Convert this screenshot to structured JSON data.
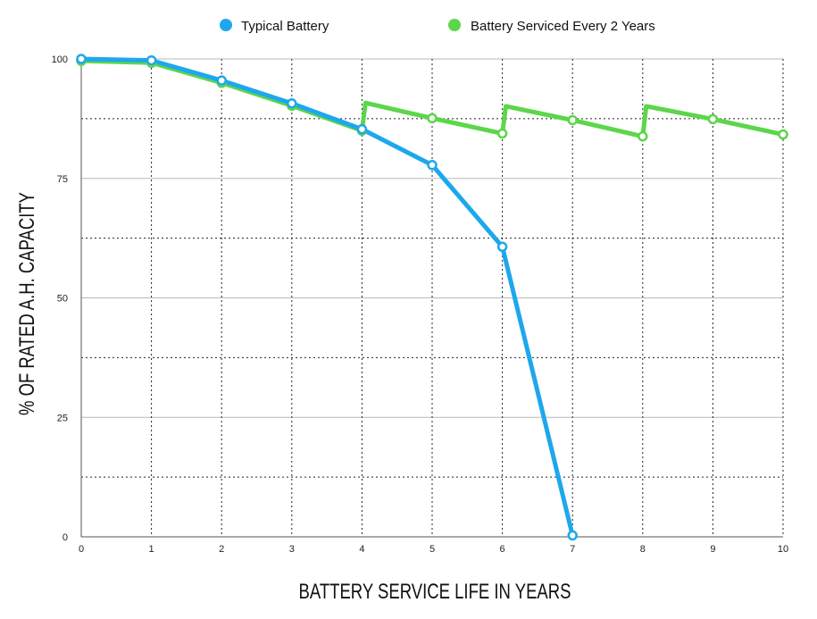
{
  "chart_data": {
    "type": "line",
    "xlabel": "BATTERY SERVICE LIFE IN YEARS",
    "ylabel": "% OF RATED A.H. CAPACITY",
    "xlim": [
      0,
      10
    ],
    "ylim": [
      0,
      100
    ],
    "x_ticks": [
      "0",
      "1",
      "2",
      "3",
      "4",
      "5",
      "6",
      "7",
      "8",
      "9",
      "10"
    ],
    "y_ticks": [
      "0",
      "25",
      "50",
      "75",
      "100"
    ],
    "grid": true,
    "legend_position": "top",
    "series": [
      {
        "name": "Typical Battery",
        "color": "#1ea7ec",
        "points": [
          {
            "x": 0,
            "y": 100
          },
          {
            "x": 1,
            "y": 99.7
          },
          {
            "x": 2,
            "y": 95.5
          },
          {
            "x": 3,
            "y": 90.7
          },
          {
            "x": 4,
            "y": 85.3
          },
          {
            "x": 5,
            "y": 77.8
          },
          {
            "x": 6,
            "y": 60.7
          },
          {
            "x": 7,
            "y": 0.3
          }
        ]
      },
      {
        "name": "Battery Serviced Every 2 Years",
        "color": "#5cd64a",
        "points": [
          {
            "x": 0,
            "y": 99.6,
            "marker": true
          },
          {
            "x": 1,
            "y": 99.2,
            "marker": true
          },
          {
            "x": 2,
            "y": 95,
            "marker": true
          },
          {
            "x": 3,
            "y": 90.2,
            "marker": true
          },
          {
            "x": 4,
            "y": 85,
            "marker": true
          },
          {
            "x": 4.05,
            "y": 90.8,
            "marker": false
          },
          {
            "x": 5,
            "y": 87.6,
            "marker": true
          },
          {
            "x": 6,
            "y": 84.4,
            "marker": true
          },
          {
            "x": 6.05,
            "y": 90.1,
            "marker": false
          },
          {
            "x": 7,
            "y": 87.2,
            "marker": true
          },
          {
            "x": 8,
            "y": 83.8,
            "marker": true
          },
          {
            "x": 8.05,
            "y": 90.1,
            "marker": false
          },
          {
            "x": 9,
            "y": 87.4,
            "marker": true
          },
          {
            "x": 10,
            "y": 84.2,
            "marker": true
          }
        ]
      }
    ]
  }
}
